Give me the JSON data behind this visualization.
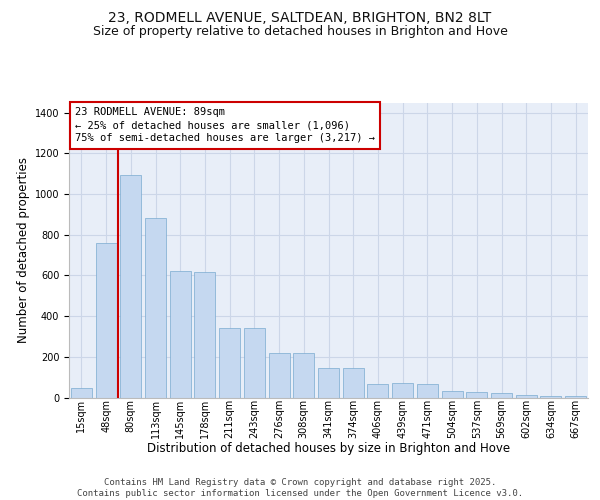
{
  "title_line1": "23, RODMELL AVENUE, SALTDEAN, BRIGHTON, BN2 8LT",
  "title_line2": "Size of property relative to detached houses in Brighton and Hove",
  "xlabel": "Distribution of detached houses by size in Brighton and Hove",
  "ylabel": "Number of detached properties",
  "categories": [
    "15sqm",
    "48sqm",
    "80sqm",
    "113sqm",
    "145sqm",
    "178sqm",
    "211sqm",
    "243sqm",
    "276sqm",
    "308sqm",
    "341sqm",
    "374sqm",
    "406sqm",
    "439sqm",
    "471sqm",
    "504sqm",
    "537sqm",
    "569sqm",
    "602sqm",
    "634sqm",
    "667sqm"
  ],
  "values": [
    45,
    760,
    1095,
    880,
    620,
    615,
    340,
    340,
    220,
    220,
    145,
    145,
    65,
    70,
    68,
    30,
    25,
    20,
    12,
    8,
    5
  ],
  "bar_color": "#c5d8f0",
  "bar_edge_color": "#7aaad0",
  "grid_color": "#ccd6e8",
  "bg_color": "#e8eef8",
  "vline_color": "#cc0000",
  "vline_x": 1.5,
  "annotation_text": "23 RODMELL AVENUE: 89sqm\n← 25% of detached houses are smaller (1,096)\n75% of semi-detached houses are larger (3,217) →",
  "footnote_line1": "Contains HM Land Registry data © Crown copyright and database right 2025.",
  "footnote_line2": "Contains public sector information licensed under the Open Government Licence v3.0.",
  "ylim": [
    0,
    1450
  ],
  "yticks": [
    0,
    200,
    400,
    600,
    800,
    1000,
    1200,
    1400
  ],
  "title_fontsize": 10,
  "subtitle_fontsize": 9,
  "axis_label_fontsize": 8.5,
  "tick_fontsize": 7,
  "annot_fontsize": 7.5,
  "footnote_fontsize": 6.5
}
